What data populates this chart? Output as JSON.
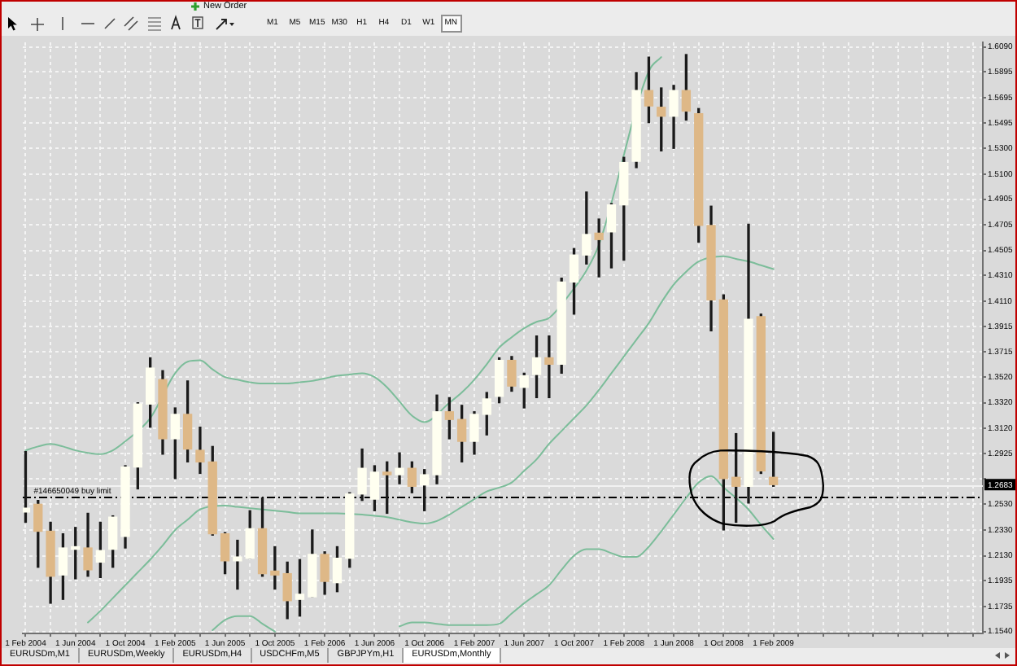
{
  "chart_data": {
    "type": "candlestick",
    "x": [
      "2004-02",
      "2004-03",
      "2004-04",
      "2004-05",
      "2004-06",
      "2004-07",
      "2004-08",
      "2004-09",
      "2004-10",
      "2004-11",
      "2004-12",
      "2005-01",
      "2005-02",
      "2005-03",
      "2005-04",
      "2005-05",
      "2005-06",
      "2005-07",
      "2005-08",
      "2005-09",
      "2005-10",
      "2005-11",
      "2005-12",
      "2006-01",
      "2006-02",
      "2006-03",
      "2006-04",
      "2006-05",
      "2006-06",
      "2006-07",
      "2006-08",
      "2006-09",
      "2006-10",
      "2006-11",
      "2006-12",
      "2007-01",
      "2007-02",
      "2007-03",
      "2007-04",
      "2007-05",
      "2007-06",
      "2007-07",
      "2007-08",
      "2007-09",
      "2007-10",
      "2007-11",
      "2007-12",
      "2008-01",
      "2008-02",
      "2008-03",
      "2008-04",
      "2008-05",
      "2008-06",
      "2008-07",
      "2008-08",
      "2008-09",
      "2008-10",
      "2008-11",
      "2008-12",
      "2009-01",
      "2009-02"
    ],
    "ohlc": [
      [
        1.247,
        1.294,
        1.239,
        1.25
      ],
      [
        1.253,
        1.256,
        1.204,
        1.232
      ],
      [
        1.232,
        1.239,
        1.176,
        1.197
      ],
      [
        1.198,
        1.23,
        1.179,
        1.219
      ],
      [
        1.218,
        1.235,
        1.195,
        1.22
      ],
      [
        1.219,
        1.246,
        1.197,
        1.202
      ],
      [
        1.208,
        1.239,
        1.196,
        1.217
      ],
      [
        1.218,
        1.244,
        1.204,
        1.243
      ],
      [
        1.228,
        1.283,
        1.219,
        1.282
      ],
      [
        1.282,
        1.332,
        1.265,
        1.331
      ],
      [
        1.331,
        1.367,
        1.313,
        1.359
      ],
      [
        1.35,
        1.357,
        1.292,
        1.304
      ],
      [
        1.304,
        1.328,
        1.273,
        1.323
      ],
      [
        1.323,
        1.349,
        1.286,
        1.296
      ],
      [
        1.295,
        1.313,
        1.277,
        1.286
      ],
      [
        1.286,
        1.298,
        1.229,
        1.23
      ],
      [
        1.23,
        1.231,
        1.199,
        1.209
      ],
      [
        1.209,
        1.225,
        1.187,
        1.212
      ],
      [
        1.211,
        1.248,
        1.211,
        1.234
      ],
      [
        1.234,
        1.258,
        1.197,
        1.199
      ],
      [
        1.201,
        1.22,
        1.187,
        1.198
      ],
      [
        1.199,
        1.208,
        1.164,
        1.178
      ],
      [
        1.179,
        1.21,
        1.166,
        1.183
      ],
      [
        1.181,
        1.233,
        1.181,
        1.214
      ],
      [
        1.214,
        1.216,
        1.183,
        1.193
      ],
      [
        1.192,
        1.22,
        1.185,
        1.211
      ],
      [
        1.211,
        1.262,
        1.204,
        1.261
      ],
      [
        1.261,
        1.296,
        1.256,
        1.281
      ],
      [
        1.257,
        1.283,
        1.248,
        1.278
      ],
      [
        1.278,
        1.286,
        1.246,
        1.276
      ],
      [
        1.276,
        1.293,
        1.269,
        1.281
      ],
      [
        1.281,
        1.286,
        1.262,
        1.267
      ],
      [
        1.268,
        1.28,
        1.248,
        1.276
      ],
      [
        1.276,
        1.338,
        1.269,
        1.325
      ],
      [
        1.325,
        1.336,
        1.304,
        1.319
      ],
      [
        1.319,
        1.33,
        1.286,
        1.302
      ],
      [
        1.302,
        1.325,
        1.292,
        1.323
      ],
      [
        1.323,
        1.34,
        1.307,
        1.335
      ],
      [
        1.337,
        1.367,
        1.332,
        1.365
      ],
      [
        1.365,
        1.368,
        1.341,
        1.345
      ],
      [
        1.344,
        1.355,
        1.328,
        1.353
      ],
      [
        1.354,
        1.384,
        1.336,
        1.367
      ],
      [
        1.367,
        1.384,
        1.336,
        1.362
      ],
      [
        1.362,
        1.429,
        1.355,
        1.426
      ],
      [
        1.426,
        1.452,
        1.401,
        1.447
      ],
      [
        1.447,
        1.496,
        1.44,
        1.463
      ],
      [
        1.464,
        1.475,
        1.43,
        1.459
      ],
      [
        1.465,
        1.487,
        1.437,
        1.486
      ],
      [
        1.486,
        1.523,
        1.443,
        1.519
      ],
      [
        1.52,
        1.589,
        1.515,
        1.575
      ],
      [
        1.575,
        1.601,
        1.55,
        1.563
      ],
      [
        1.562,
        1.577,
        1.528,
        1.555
      ],
      [
        1.555,
        1.579,
        1.53,
        1.575
      ],
      [
        1.575,
        1.603,
        1.552,
        1.559
      ],
      [
        1.557,
        1.561,
        1.457,
        1.47
      ],
      [
        1.47,
        1.485,
        1.388,
        1.412
      ],
      [
        1.412,
        1.416,
        1.233,
        1.273
      ],
      [
        1.274,
        1.308,
        1.239,
        1.267
      ],
      [
        1.267,
        1.471,
        1.254,
        1.397
      ],
      [
        1.399,
        1.401,
        1.277,
        1.279
      ],
      [
        1.274,
        1.309,
        1.267,
        1.2683
      ]
    ],
    "colors": [
      "#fffff0",
      "#deb887",
      "#deb887",
      "#fffff0",
      "#fffff0",
      "#deb887",
      "#fffff0",
      "#fffff0",
      "#fffff0",
      "#fffff0",
      "#fffff0",
      "#deb887",
      "#fffff0",
      "#deb887",
      "#deb887",
      "#deb887",
      "#deb887",
      "#fffff0",
      "#fffff0",
      "#deb887",
      "#deb887",
      "#deb887",
      "#fffff0",
      "#fffff0",
      "#deb887",
      "#fffff0",
      "#fffff0",
      "#fffff0",
      "#fffff0",
      "#deb887",
      "#fffff0",
      "#deb887",
      "#fffff0",
      "#fffff0",
      "#deb887",
      "#deb887",
      "#fffff0",
      "#fffff0",
      "#fffff0",
      "#deb887",
      "#fffff0",
      "#fffff0",
      "#deb887",
      "#fffff0",
      "#fffff0",
      "#fffff0",
      "#deb887",
      "#fffff0",
      "#fffff0",
      "#fffff0",
      "#deb887",
      "#deb887",
      "#fffff0",
      "#deb887",
      "#deb887",
      "#deb887",
      "#deb887",
      "#deb887",
      "#fffff0",
      "#deb887",
      "#deb887"
    ],
    "series": [
      {
        "type": "line",
        "color": "#7cbd9a",
        "x": [
          "2004-02",
          "2004-03",
          "2004-04",
          "2004-05",
          "2004-06",
          "2004-07",
          "2004-08",
          "2004-09",
          "2004-10",
          "2004-12",
          "2005-02",
          "2005-03",
          "2005-04",
          "2005-05",
          "2005-06",
          "2005-07",
          "2005-08",
          "2005-09",
          "2005-10",
          "2005-11",
          "2005-12",
          "2006-01",
          "2006-02",
          "2006-03",
          "2006-04",
          "2006-05",
          "2006-06",
          "2006-07",
          "2006-08",
          "2006-09",
          "2006-10",
          "2006-12",
          "2007-01",
          "2007-02",
          "2007-03",
          "2007-04",
          "2007-05",
          "2007-06",
          "2007-07",
          "2007-08",
          "2007-10",
          "2007-11",
          "2007-12",
          "2008-04",
          "2008-05"
        ],
        "values": [
          1.295,
          1.298,
          1.3,
          1.298,
          1.295,
          1.293,
          1.292,
          1.295,
          1.302,
          1.32,
          1.355,
          1.364,
          1.365,
          1.358,
          1.352,
          1.35,
          1.348,
          1.347,
          1.347,
          1.347,
          1.348,
          1.349,
          1.351,
          1.353,
          1.354,
          1.355,
          1.352,
          1.344,
          1.333,
          1.322,
          1.317,
          1.332,
          1.34,
          1.35,
          1.362,
          1.375,
          1.383,
          1.39,
          1.395,
          1.398,
          1.421,
          1.435,
          1.455,
          1.59,
          1.601
        ]
      },
      {
        "type": "line",
        "color": "#7cbd9a",
        "x": [
          "2004-07",
          "2004-08",
          "2004-09",
          "2004-10",
          "2004-11",
          "2004-12",
          "2005-01",
          "2005-02",
          "2005-03",
          "2005-04",
          "2005-06",
          "2005-07",
          "2005-08",
          "2005-09",
          "2005-10",
          "2005-11",
          "2005-12",
          "2006-01",
          "2006-02",
          "2006-03",
          "2006-05",
          "2006-06",
          "2006-07",
          "2006-08",
          "2006-09",
          "2006-10",
          "2006-11",
          "2006-12",
          "2007-01",
          "2007-02",
          "2007-03",
          "2007-04",
          "2007-05",
          "2007-06",
          "2007-07",
          "2007-08",
          "2007-09",
          "2007-10",
          "2007-11",
          "2007-12",
          "2008-01",
          "2008-02",
          "2008-03",
          "2008-04",
          "2008-05",
          "2008-06",
          "2008-07",
          "2008-08",
          "2008-10",
          "2008-11",
          "2008-12",
          "2009-01",
          "2009-02"
        ],
        "values": [
          1.161,
          1.17,
          1.18,
          1.19,
          1.2,
          1.21,
          1.221,
          1.233,
          1.241,
          1.249,
          1.252,
          1.251,
          1.25,
          1.249,
          1.248,
          1.247,
          1.246,
          1.246,
          1.246,
          1.246,
          1.245,
          1.244,
          1.243,
          1.241,
          1.239,
          1.238,
          1.24,
          1.245,
          1.251,
          1.257,
          1.263,
          1.266,
          1.27,
          1.279,
          1.288,
          1.3,
          1.31,
          1.32,
          1.33,
          1.342,
          1.355,
          1.368,
          1.381,
          1.394,
          1.41,
          1.424,
          1.434,
          1.442,
          1.446,
          1.444,
          1.442,
          1.439,
          1.436
        ]
      },
      {
        "type": "line",
        "color": "#7cbd9a",
        "x": [
          "2005-05",
          "2005-06",
          "2005-07",
          "2005-08",
          "2005-09",
          "2005-10",
          "2005-11",
          "2005-12",
          "2006-01",
          "2006-02",
          "2006-03",
          "2006-04",
          "2006-05",
          "2006-06",
          "2006-07",
          "2006-08",
          "2006-09",
          "2006-10",
          "2006-11",
          "2006-12",
          "2007-01",
          "2007-02",
          "2007-03",
          "2007-04",
          "2007-05",
          "2007-06",
          "2007-07",
          "2007-08",
          "2007-09",
          "2007-10",
          "2007-11",
          "2007-12",
          "2008-01",
          "2008-02",
          "2008-03",
          "2008-04",
          "2008-05",
          "2008-06",
          "2008-07",
          "2008-08",
          "2008-09",
          "2008-10",
          "2008-11",
          "2008-12",
          "2009-01",
          "2009-02"
        ],
        "values": [
          1.155,
          1.163,
          1.166,
          1.166,
          1.16,
          1.154,
          null,
          null,
          null,
          null,
          null,
          null,
          null,
          null,
          null,
          1.158,
          1.161,
          1.161,
          1.16,
          1.159,
          1.159,
          1.159,
          1.159,
          1.16,
          1.168,
          1.176,
          1.183,
          1.19,
          1.202,
          1.213,
          1.218,
          1.218,
          1.215,
          1.212,
          1.212,
          1.22,
          1.232,
          1.245,
          1.258,
          1.27,
          1.275,
          1.266,
          1.258,
          1.249,
          1.237,
          1.226
        ]
      }
    ],
    "xlim": [
      "2004-01-25",
      "2010-06-25"
    ],
    "xticks": [
      {
        "value": "2004-02-01",
        "label": "1 Feb 2004"
      },
      {
        "value": "2004-04-01",
        "label": null
      },
      {
        "value": "2004-06-01",
        "label": "1 Jun 2004"
      },
      {
        "value": "2004-08-01",
        "label": null
      },
      {
        "value": "2004-10-01",
        "label": "1 Oct 2004"
      },
      {
        "value": "2004-12-01",
        "label": null
      },
      {
        "value": "2005-02-01",
        "label": "1 Feb 2005"
      },
      {
        "value": "2005-04-01",
        "label": null
      },
      {
        "value": "2005-06-01",
        "label": "1 Jun 2005"
      },
      {
        "value": "2005-08-01",
        "label": null
      },
      {
        "value": "2005-10-01",
        "label": "1 Oct 2005"
      },
      {
        "value": "2005-12-01",
        "label": null
      },
      {
        "value": "2006-02-01",
        "label": "1 Feb 2006"
      },
      {
        "value": "2006-04-01",
        "label": null
      },
      {
        "value": "2006-06-01",
        "label": "1 Jun 2006"
      },
      {
        "value": "2006-08-01",
        "label": null
      },
      {
        "value": "2006-10-01",
        "label": "1 Oct 2006"
      },
      {
        "value": "2006-12-01",
        "label": null
      },
      {
        "value": "2007-02-01",
        "label": "1 Feb 2007"
      },
      {
        "value": "2007-04-01",
        "label": null
      },
      {
        "value": "2007-06-01",
        "label": "1 Jun 2007"
      },
      {
        "value": "2007-08-01",
        "label": null
      },
      {
        "value": "2007-10-01",
        "label": "1 Oct 2007"
      },
      {
        "value": "2007-12-01",
        "label": null
      },
      {
        "value": "2008-02-01",
        "label": "1 Feb 2008"
      },
      {
        "value": "2008-04-01",
        "label": null
      },
      {
        "value": "2008-06-01",
        "label": "1 Jun 2008"
      },
      {
        "value": "2008-08-01",
        "label": null
      },
      {
        "value": "2008-10-01",
        "label": "1 Oct 2008"
      },
      {
        "value": "2008-12-01",
        "label": null
      },
      {
        "value": "2009-02-01",
        "label": "1 Feb 2009"
      },
      {
        "value": "2009-04-01",
        "label": null
      },
      {
        "value": "2009-06-01",
        "label": null
      },
      {
        "value": "2009-08-01",
        "label": null
      },
      {
        "value": "2009-10-01",
        "label": null
      },
      {
        "value": "2009-12-01",
        "label": null
      },
      {
        "value": "2010-02-01",
        "label": null
      },
      {
        "value": "2010-04-01",
        "label": null
      },
      {
        "value": "2010-06-01",
        "label": null
      }
    ],
    "ylim": [
      1.1525,
      1.6125
    ],
    "yticks": [
      {
        "value": 1.609,
        "label": "1.6090"
      },
      1.5895,
      1.5695,
      1.5495,
      {
        "value": 1.53,
        "label": "1.5300"
      },
      {
        "value": 1.51,
        "label": "1.5100"
      },
      1.4905,
      1.4705,
      1.4505,
      {
        "value": 1.431,
        "label": "1.4310"
      },
      {
        "value": 1.411,
        "label": "1.4110"
      },
      1.3915,
      1.3715,
      {
        "value": 1.352,
        "label": "1.3520"
      },
      {
        "value": 1.332,
        "label": "1.3320"
      },
      {
        "value": 1.312,
        "label": "1.3120"
      },
      1.2925,
      {
        "value": 1.273,
        "label": null
      },
      {
        "value": 1.253,
        "label": "1.2530"
      },
      {
        "value": 1.233,
        "label": "1.2330"
      },
      {
        "value": 1.213,
        "label": "1.2130"
      },
      1.1935,
      1.1735,
      {
        "value": 1.154,
        "label": "1.1540"
      }
    ],
    "grid": true,
    "ref_lines": [
      {
        "axis": "y",
        "value": 1.2683,
        "label": "1.2683",
        "color": "#f2f2f2"
      },
      {
        "axis": "y",
        "value": 1.259,
        "color": "#000000",
        "line_style": "dashed"
      }
    ],
    "annotations": [
      {
        "text": "#146650049 buy limit",
        "x": "2004-02-20",
        "y": 1.259
      },
      "New Order",
      "M1",
      "M5",
      "M15",
      "M30",
      "H1",
      "H4",
      "D1",
      "W1",
      "MN",
      "EURUSDm,M1",
      "EURUSDm,Weekly",
      "EURUSDm,H4",
      "USDCHFm,M5",
      "GBPJPYm,H1",
      "EURUSDm,Monthly"
    ]
  }
}
